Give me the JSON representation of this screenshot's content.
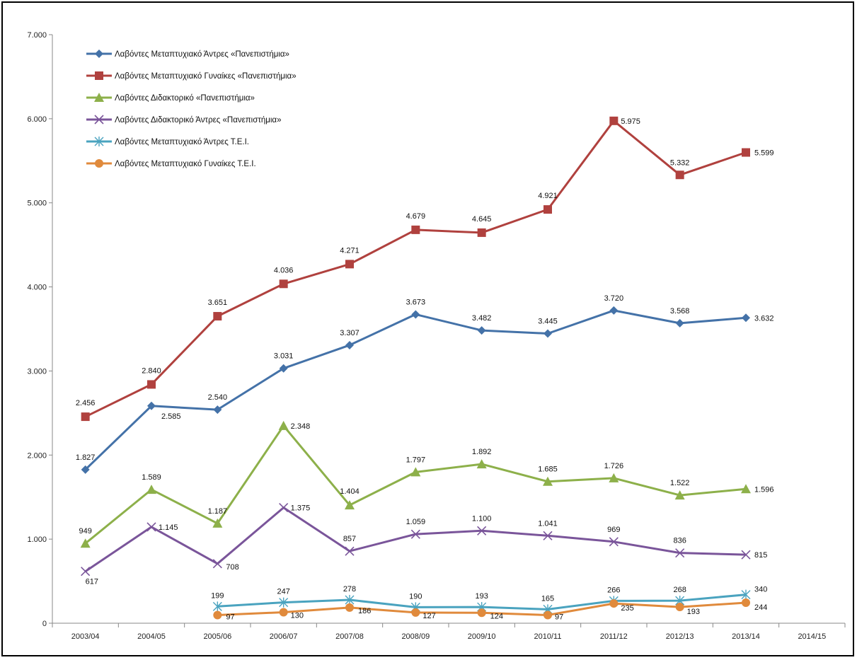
{
  "chart_data": {
    "type": "line",
    "title": "",
    "xlabel": "",
    "ylabel": "",
    "ylim": [
      0,
      7000
    ],
    "yticks": [
      0,
      1000,
      2000,
      3000,
      4000,
      5000,
      6000,
      7000
    ],
    "ytick_labels": [
      "0",
      "1.000",
      "2.000",
      "3.000",
      "4.000",
      "5.000",
      "6.000",
      "7.000"
    ],
    "categories": [
      "2003/04",
      "2004/05",
      "2005/06",
      "2006/07",
      "2007/08",
      "2008/09",
      "2009/10",
      "2010/11",
      "2011/12",
      "2012/13",
      "2013/14",
      "2014/15"
    ],
    "grid": false,
    "legend_position": "top-left",
    "series": [
      {
        "name": "Λαβόντες Μεταπτυχιακό Άντρες «Πανεπιστήμια»",
        "color": "#4472a8",
        "marker": "diamond",
        "values": [
          1827,
          2585,
          2540,
          3031,
          3307,
          3673,
          3482,
          3445,
          3720,
          3568,
          3632,
          null
        ],
        "labels": [
          "1.827",
          "2.585",
          "2.540",
          "3.031",
          "3.307",
          "3.673",
          "3.482",
          "3.445",
          "3.720",
          "3.568",
          "3.632",
          ""
        ]
      },
      {
        "name": "Λαβόντες Μεταπτυχιακό Γυναίκες «Πανεπιστήμια»",
        "color": "#b0413e",
        "marker": "square",
        "values": [
          2456,
          2840,
          3651,
          4036,
          4271,
          4679,
          4645,
          4921,
          5975,
          5332,
          5599,
          null
        ],
        "labels": [
          "2.456",
          "2.840",
          "3.651",
          "4.036",
          "4.271",
          "4.679",
          "4.645",
          "4.921",
          "5.975",
          "5.332",
          "5.599",
          ""
        ]
      },
      {
        "name": "Λαβόντες Διδακτορικό «Πανεπιστήμια»",
        "color": "#8db04a",
        "marker": "triangle",
        "values": [
          949,
          1589,
          1187,
          2348,
          1404,
          1797,
          1892,
          1685,
          1726,
          1522,
          1596,
          null
        ],
        "labels": [
          "949",
          "1.589",
          "1.187",
          "2.348",
          "1.404",
          "1.797",
          "1.892",
          "1.685",
          "1.726",
          "1.522",
          "1.596",
          ""
        ]
      },
      {
        "name": "Λαβόντες Διδακτορικό Άντρες «Πανεπιστήμια»",
        "color": "#7a559a",
        "marker": "x",
        "values": [
          617,
          1145,
          708,
          1375,
          857,
          1059,
          1100,
          1041,
          969,
          836,
          815,
          null
        ],
        "labels": [
          "617",
          "1.145",
          "708",
          "1.375",
          "857",
          "1.059",
          "1.100",
          "1.041",
          "969",
          "836",
          "815",
          ""
        ]
      },
      {
        "name": "Λαβόντες Μεταπτυχιακό Άντρες Τ.Ε.Ι.",
        "color": "#4aa3bf",
        "marker": "star",
        "values": [
          null,
          null,
          199,
          247,
          278,
          190,
          193,
          165,
          266,
          268,
          340,
          null
        ],
        "labels": [
          "",
          "",
          "199",
          "247",
          "278",
          "190",
          "193",
          "165",
          "266",
          "268",
          "340",
          ""
        ]
      },
      {
        "name": "Λαβόντες Μεταπτυχιακό Γυναίκες Τ.Ε.Ι.",
        "color": "#e08a3c",
        "marker": "circle",
        "values": [
          null,
          null,
          97,
          130,
          186,
          127,
          124,
          97,
          235,
          193,
          244,
          null
        ],
        "labels": [
          "",
          "",
          "97",
          "130",
          "186",
          "127",
          "124",
          "97",
          "235",
          "193",
          "244",
          ""
        ]
      }
    ]
  }
}
